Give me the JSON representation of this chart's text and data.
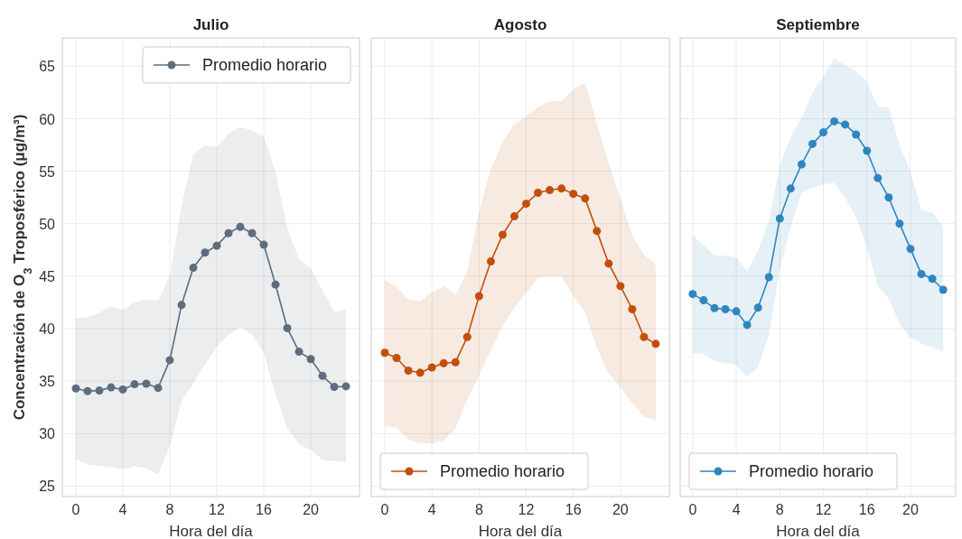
{
  "chart_data": [
    {
      "type": "line",
      "title": "Julio",
      "xlabel": "Hora del día",
      "ylabel": "Concentración de O$_{3}$ Troposférico (μg/m³)",
      "x": [
        0,
        1,
        2,
        3,
        4,
        5,
        6,
        7,
        8,
        9,
        10,
        11,
        12,
        13,
        14,
        15,
        16,
        17,
        18,
        19,
        20,
        21,
        22,
        23
      ],
      "xlim": [
        -1.15,
        24.15
      ],
      "xticks": [
        0,
        4,
        8,
        12,
        16,
        20
      ],
      "ylim": [
        24,
        67.7
      ],
      "yticks": [
        25,
        30,
        35,
        40,
        45,
        50,
        55,
        60,
        65
      ],
      "grid": true,
      "legend": "top right",
      "marker": "circle",
      "series": [
        {
          "name": "Promedio horario",
          "color": "#5d6d7e",
          "values": [
            34.3,
            34.05,
            34.1,
            34.4,
            34.2,
            34.7,
            34.75,
            34.35,
            37.0,
            42.25,
            45.8,
            47.25,
            47.9,
            49.1,
            49.7,
            49.1,
            48.0,
            44.2,
            40.05,
            37.8,
            37.1,
            35.5,
            34.45,
            34.5
          ],
          "upper": [
            41.0,
            41.1,
            41.5,
            42.1,
            41.8,
            42.5,
            42.8,
            42.7,
            45.0,
            51.75,
            56.6,
            57.45,
            57.3,
            58.6,
            59.2,
            58.9,
            58.3,
            54.9,
            49.6,
            46.6,
            45.75,
            43.65,
            41.6,
            41.8
          ],
          "lower": [
            27.6,
            27.05,
            26.9,
            26.8,
            26.6,
            26.9,
            26.7,
            26.1,
            28.8,
            33.1,
            34.8,
            36.55,
            38.3,
            39.4,
            40.2,
            39.4,
            37.7,
            33.7,
            30.5,
            28.95,
            28.45,
            27.5,
            27.4,
            27.3
          ]
        }
      ]
    },
    {
      "type": "line",
      "title": "Agosto",
      "xlabel": "Hora del día",
      "x": [
        0,
        1,
        2,
        3,
        4,
        5,
        6,
        7,
        8,
        9,
        10,
        11,
        12,
        13,
        14,
        15,
        16,
        17,
        18,
        19,
        20,
        21,
        22,
        23
      ],
      "xlim": [
        -1.15,
        24.15
      ],
      "xticks": [
        0,
        4,
        8,
        12,
        16,
        20
      ],
      "ylim": [
        24,
        67.7
      ],
      "yticks": [
        25,
        30,
        35,
        40,
        45,
        50,
        55,
        60,
        65
      ],
      "tick_labels": "x",
      "grid": true,
      "legend": "bottom left",
      "marker": "circle",
      "series": [
        {
          "name": "Promedio horario",
          "color": "#c0500c",
          "values": [
            37.7,
            37.2,
            36.0,
            35.8,
            36.3,
            36.7,
            36.8,
            39.2,
            43.1,
            46.4,
            48.95,
            50.7,
            51.9,
            52.95,
            53.2,
            53.35,
            52.85,
            52.4,
            49.3,
            46.2,
            44.05,
            41.85,
            39.2,
            38.55
          ],
          "upper": [
            44.6,
            44.0,
            42.8,
            42.6,
            43.5,
            44.05,
            43.2,
            45.45,
            51.2,
            55.2,
            57.8,
            59.5,
            60.2,
            61.15,
            61.65,
            61.7,
            62.8,
            63.45,
            59.5,
            55.8,
            52.35,
            48.9,
            47.05,
            46.05
          ],
          "lower": [
            30.7,
            30.55,
            29.4,
            29.1,
            29.05,
            29.35,
            30.5,
            33.25,
            35.55,
            37.95,
            40.3,
            42.0,
            43.4,
            44.85,
            45.0,
            45.0,
            43.15,
            41.55,
            38.2,
            35.7,
            34.4,
            32.9,
            31.6,
            31.3
          ]
        }
      ]
    },
    {
      "type": "line",
      "title": "Septiembre",
      "xlabel": "Hora del día",
      "x": [
        0,
        1,
        2,
        3,
        4,
        5,
        6,
        7,
        8,
        9,
        10,
        11,
        12,
        13,
        14,
        15,
        16,
        17,
        18,
        19,
        20,
        21,
        22,
        23
      ],
      "xlim": [
        -1.15,
        24.15
      ],
      "xticks": [
        0,
        4,
        8,
        12,
        16,
        20
      ],
      "ylim": [
        24,
        67.7
      ],
      "yticks": [
        25,
        30,
        35,
        40,
        45,
        50,
        55,
        60,
        65
      ],
      "tick_labels": "x",
      "grid": true,
      "legend": "bottom left",
      "marker": "circle",
      "series": [
        {
          "name": "Promedio horario",
          "color": "#2e86c1",
          "values": [
            43.3,
            42.7,
            41.95,
            41.85,
            41.65,
            40.35,
            42.0,
            44.9,
            50.5,
            53.35,
            55.65,
            57.6,
            58.7,
            59.75,
            59.45,
            58.5,
            56.95,
            54.35,
            52.5,
            50.0,
            47.6,
            45.2,
            44.75,
            43.7
          ],
          "upper": [
            48.9,
            47.95,
            47.0,
            46.95,
            46.8,
            45.5,
            47.45,
            50.3,
            55.5,
            58.3,
            60.05,
            62.5,
            64.05,
            65.75,
            65.1,
            64.5,
            63.5,
            61.2,
            61.05,
            57.5,
            54.9,
            51.3,
            51.05,
            49.7
          ],
          "lower": [
            37.7,
            37.6,
            36.9,
            36.7,
            36.5,
            35.4,
            36.35,
            39.4,
            45.7,
            49.7,
            52.9,
            53.45,
            53.75,
            53.9,
            52.45,
            50.6,
            47.75,
            44.0,
            42.9,
            40.45,
            39.15,
            38.6,
            38.2,
            37.9
          ]
        }
      ]
    }
  ]
}
